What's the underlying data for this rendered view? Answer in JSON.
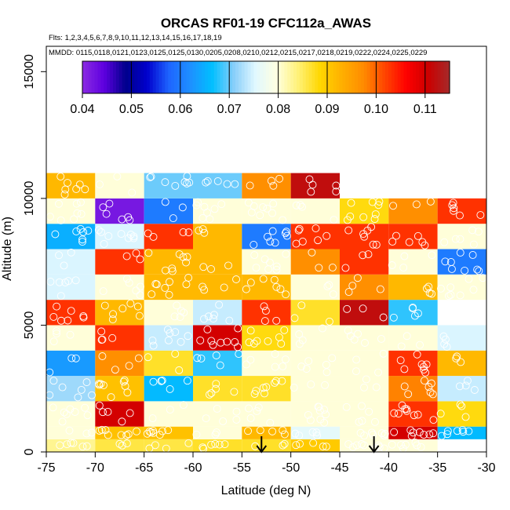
{
  "chart_data": {
    "type": "heatmap",
    "title": "ORCAS RF01-19 CFC112a_AWAS",
    "flights_note": "Flts: 1,2,3,4,5,6,7,8,9,10,11,12,13,14,15,16,17,18,19",
    "dates_note": "MMDD: 0115,0118,0121,0123,0125,0125,0130,0205,0208,0210,0212,0215,0217,0218,0219,0222,0224,0225,0229",
    "xlabel": "Latitude (deg N)",
    "ylabel": "Altitude (m)",
    "xlim": [
      -75,
      -30
    ],
    "ylim": [
      0,
      16000
    ],
    "x_ticks": [
      -75,
      -70,
      -65,
      -60,
      -55,
      -50,
      -45,
      -40,
      -35,
      -30
    ],
    "x_tick_labels": [
      "-75",
      "-70",
      "-65",
      "-60",
      "-55",
      "-50",
      "-45",
      "-40",
      "-35",
      "-30"
    ],
    "y_ticks": [
      0,
      5000,
      10000,
      15000
    ],
    "y_tick_labels": [
      "0",
      "5000",
      "10000",
      "15000"
    ],
    "colorbar": {
      "range": [
        0.04,
        0.115
      ],
      "ticks": [
        0.04,
        0.05,
        0.06,
        0.07,
        0.08,
        0.09,
        0.1,
        0.11
      ],
      "tick_labels": [
        "0.04",
        "0.05",
        "0.06",
        "0.07",
        "0.08",
        "0.09",
        "0.10",
        "0.11"
      ],
      "colors": [
        "#8a2be2",
        "#5f00e0",
        "#00008b",
        "#0000cd",
        "#1e64ff",
        "#1e90ff",
        "#00bfff",
        "#87cefa",
        "#e0f8ff",
        "#ffffe0",
        "#fff176",
        "#ffd700",
        "#ffb000",
        "#ff8c00",
        "#ff4500",
        "#ff0000",
        "#cc0000",
        "#a52a2a"
      ]
    },
    "lat_edges": [
      -75,
      -70,
      -65,
      -60,
      -55,
      -50,
      -45,
      -40,
      -35,
      -30
    ],
    "alt_edges": [
      0,
      500,
      1000,
      2000,
      3000,
      4000,
      5000,
      6000,
      7000,
      8000,
      9000,
      10000,
      11000,
      12000
    ],
    "cells": [
      [
        -75,
        0,
        0.083
      ],
      [
        -70,
        0,
        0.086
      ],
      [
        -65,
        0,
        0.086
      ],
      [
        -60,
        0,
        0.087
      ],
      [
        -55,
        0,
        0.087
      ],
      [
        -50,
        0,
        0.09
      ],
      [
        -45,
        0,
        0.08
      ],
      [
        -40,
        0,
        0.08
      ],
      [
        -75,
        1,
        0.08
      ],
      [
        -70,
        1,
        0.091
      ],
      [
        -65,
        1,
        0.091
      ],
      [
        -60,
        1,
        0.08
      ],
      [
        -55,
        1,
        0.092
      ],
      [
        -50,
        1,
        0.076
      ],
      [
        -45,
        1,
        0.08
      ],
      [
        -40,
        1,
        0.11
      ],
      [
        -35,
        1,
        0.066
      ],
      [
        -75,
        2,
        0.08
      ],
      [
        -70,
        2,
        0.11
      ],
      [
        -65,
        2,
        0.08
      ],
      [
        -60,
        2,
        0.08
      ],
      [
        -55,
        2,
        0.08
      ],
      [
        -50,
        2,
        0.08
      ],
      [
        -45,
        2,
        0.08
      ],
      [
        -40,
        2,
        0.103
      ],
      [
        -35,
        2,
        0.088
      ],
      [
        -75,
        3,
        0.072
      ],
      [
        -70,
        3,
        0.091
      ],
      [
        -65,
        3,
        0.066
      ],
      [
        -60,
        3,
        0.087
      ],
      [
        -55,
        3,
        0.087
      ],
      [
        -50,
        3,
        0.08
      ],
      [
        -45,
        3,
        0.08
      ],
      [
        -40,
        3,
        0.098
      ],
      [
        -35,
        3,
        0.074
      ],
      [
        -75,
        4,
        0.063
      ],
      [
        -70,
        4,
        0.097
      ],
      [
        -65,
        4,
        0.087
      ],
      [
        -60,
        4,
        0.068
      ],
      [
        -55,
        4,
        0.08
      ],
      [
        -50,
        4,
        0.08
      ],
      [
        -45,
        4,
        0.08
      ],
      [
        -40,
        4,
        0.103
      ],
      [
        -35,
        4,
        0.092
      ],
      [
        -75,
        5,
        0.08
      ],
      [
        -70,
        5,
        0.103
      ],
      [
        -65,
        5,
        0.074
      ],
      [
        -60,
        5,
        0.11
      ],
      [
        -55,
        5,
        0.088
      ],
      [
        -50,
        5,
        0.08
      ],
      [
        -45,
        5,
        0.08
      ],
      [
        -40,
        5,
        0.08
      ],
      [
        -35,
        5,
        0.075
      ],
      [
        -75,
        6,
        0.103
      ],
      [
        -70,
        6,
        0.092
      ],
      [
        -65,
        6,
        0.08
      ],
      [
        -60,
        6,
        0.074
      ],
      [
        -55,
        6,
        0.103
      ],
      [
        -50,
        6,
        0.087
      ],
      [
        -45,
        6,
        0.112
      ],
      [
        -40,
        6,
        0.068
      ],
      [
        -75,
        7,
        0.075
      ],
      [
        -70,
        7,
        0.08
      ],
      [
        -65,
        7,
        0.092
      ],
      [
        -60,
        7,
        0.092
      ],
      [
        -55,
        7,
        0.092
      ],
      [
        -50,
        7,
        0.08
      ],
      [
        -45,
        7,
        0.097
      ],
      [
        -40,
        7,
        0.092
      ],
      [
        -35,
        7,
        0.08
      ],
      [
        -75,
        8,
        0.075
      ],
      [
        -70,
        8,
        0.103
      ],
      [
        -65,
        8,
        0.092
      ],
      [
        -60,
        8,
        0.092
      ],
      [
        -55,
        8,
        0.08
      ],
      [
        -50,
        8,
        0.097
      ],
      [
        -45,
        8,
        0.103
      ],
      [
        -40,
        8,
        0.08
      ],
      [
        -35,
        8,
        0.06
      ],
      [
        -75,
        9,
        0.065
      ],
      [
        -70,
        9,
        0.075
      ],
      [
        -65,
        9,
        0.103
      ],
      [
        -60,
        9,
        0.092
      ],
      [
        -55,
        9,
        0.06
      ],
      [
        -50,
        9,
        0.103
      ],
      [
        -45,
        9,
        0.103
      ],
      [
        -40,
        9,
        0.103
      ],
      [
        -35,
        9,
        0.08
      ],
      [
        -75,
        10,
        0.08
      ],
      [
        -70,
        10,
        0.042
      ],
      [
        -65,
        10,
        0.06
      ],
      [
        -60,
        10,
        0.08
      ],
      [
        -55,
        10,
        0.08
      ],
      [
        -50,
        10,
        0.08
      ],
      [
        -45,
        10,
        0.088
      ],
      [
        -40,
        10,
        0.097
      ],
      [
        -35,
        10,
        0.103
      ],
      [
        -75,
        11,
        0.092
      ],
      [
        -70,
        11,
        0.08
      ],
      [
        -65,
        11,
        0.07
      ],
      [
        -60,
        11,
        0.07
      ],
      [
        -55,
        11,
        0.097
      ],
      [
        -50,
        11,
        0.112
      ]
    ],
    "arrows_at_latitude": [
      -53,
      -41.5
    ]
  }
}
